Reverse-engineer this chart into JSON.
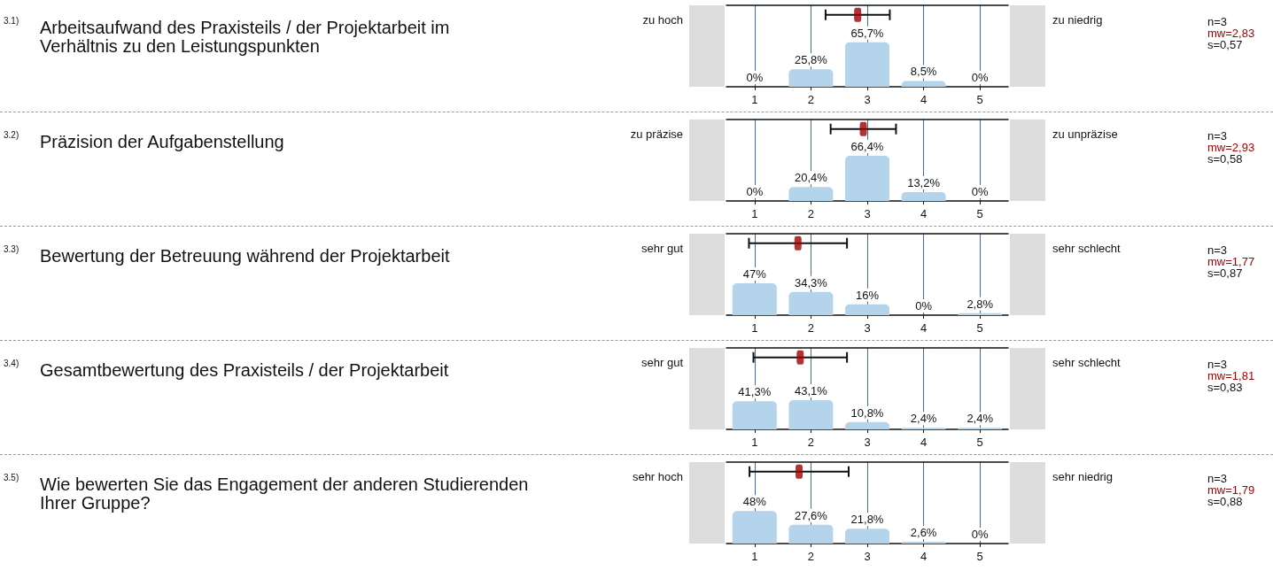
{
  "chart_data": [
    {
      "type": "bar",
      "x": [
        1,
        2,
        3,
        4,
        5
      ],
      "xlim": [
        0.5,
        5.5
      ],
      "xticks": [
        1,
        2,
        3,
        4,
        5
      ],
      "ylim": [
        0,
        120
      ],
      "tick_labels": "x",
      "grid": "x",
      "series": [
        {
          "color": "#b4d4eb",
          "values": [
            0,
            25.8,
            65.7,
            8.5,
            0
          ],
          "value_labels": [
            "0%",
            "25,8%",
            "65,7%",
            "8,5%",
            "0%"
          ]
        },
        {
          "type": "scatter",
          "color": "#a00000",
          "x": [
            2.83
          ],
          "values": [
            106
          ],
          "xerrors": [
            0.57
          ]
        }
      ],
      "annotations": [
        "3.1)",
        "Arbeitsaufwand des Praxisteils / der Projektarbeit im Verhältnis zu den Leistungspunkten",
        "zu hoch",
        "zu niedrig",
        "n=3",
        "mw=2,83",
        "s=0,57"
      ]
    },
    {
      "type": "bar",
      "x": [
        1,
        2,
        3,
        4,
        5
      ],
      "xlim": [
        0.5,
        5.5
      ],
      "xticks": [
        1,
        2,
        3,
        4,
        5
      ],
      "ylim": [
        0,
        120
      ],
      "tick_labels": "x",
      "grid": "x",
      "series": [
        {
          "color": "#b4d4eb",
          "values": [
            0,
            20.4,
            66.4,
            13.2,
            0
          ],
          "value_labels": [
            "0%",
            "20,4%",
            "66,4%",
            "13,2%",
            "0%"
          ]
        },
        {
          "type": "scatter",
          "color": "#a00000",
          "x": [
            2.93
          ],
          "values": [
            106
          ],
          "xerrors": [
            0.58
          ]
        }
      ],
      "annotations": [
        "3.2)",
        "Präzision der Aufgabenstellung",
        "zu präzise",
        "zu unpräzise",
        "n=3",
        "mw=2,93",
        "s=0,58"
      ]
    },
    {
      "type": "bar",
      "x": [
        1,
        2,
        3,
        4,
        5
      ],
      "xlim": [
        0.5,
        5.5
      ],
      "xticks": [
        1,
        2,
        3,
        4,
        5
      ],
      "ylim": [
        0,
        120
      ],
      "tick_labels": "x",
      "grid": "x",
      "series": [
        {
          "color": "#b4d4eb",
          "values": [
            47,
            34.3,
            16,
            0,
            2.8
          ],
          "value_labels": [
            "47%",
            "34,3%",
            "16%",
            "0%",
            "2,8%"
          ]
        },
        {
          "type": "scatter",
          "color": "#a00000",
          "x": [
            1.77
          ],
          "values": [
            106
          ],
          "xerrors": [
            0.87
          ]
        }
      ],
      "annotations": [
        "3.3)",
        "Bewertung der Betreuung während der Projektarbeit",
        "sehr gut",
        "sehr schlecht",
        "n=3",
        "mw=1,77",
        "s=0,87"
      ]
    },
    {
      "type": "bar",
      "x": [
        1,
        2,
        3,
        4,
        5
      ],
      "xlim": [
        0.5,
        5.5
      ],
      "xticks": [
        1,
        2,
        3,
        4,
        5
      ],
      "ylim": [
        0,
        120
      ],
      "tick_labels": "x",
      "grid": "x",
      "series": [
        {
          "color": "#b4d4eb",
          "values": [
            41.3,
            43.1,
            10.8,
            2.4,
            2.4
          ],
          "value_labels": [
            "41,3%",
            "43,1%",
            "10,8%",
            "2,4%",
            "2,4%"
          ]
        },
        {
          "type": "scatter",
          "color": "#a00000",
          "x": [
            1.81
          ],
          "values": [
            106
          ],
          "xerrors": [
            0.83
          ]
        }
      ],
      "annotations": [
        "3.4)",
        "Gesamtbewertung des Praxisteils / der Projektarbeit",
        "sehr gut",
        "sehr schlecht",
        "n=3",
        "mw=1,81",
        "s=0,83"
      ]
    },
    {
      "type": "bar",
      "x": [
        1,
        2,
        3,
        4,
        5
      ],
      "xlim": [
        0.5,
        5.5
      ],
      "xticks": [
        1,
        2,
        3,
        4,
        5
      ],
      "ylim": [
        0,
        120
      ],
      "tick_labels": "x",
      "grid": "x",
      "series": [
        {
          "color": "#b4d4eb",
          "values": [
            48,
            27.6,
            21.8,
            2.6,
            0
          ],
          "value_labels": [
            "48%",
            "27,6%",
            "21,8%",
            "2,6%",
            "0%"
          ]
        },
        {
          "type": "scatter",
          "color": "#a00000",
          "x": [
            1.79
          ],
          "values": [
            106
          ],
          "xerrors": [
            0.88
          ]
        }
      ],
      "annotations": [
        "3.5)",
        "Wie bewerten Sie das Engagement der anderen Studierenden Ihrer Gruppe?",
        "sehr hoch",
        "sehr niedrig",
        "n=3",
        "mw=1,79",
        "s=0,88"
      ]
    }
  ]
}
